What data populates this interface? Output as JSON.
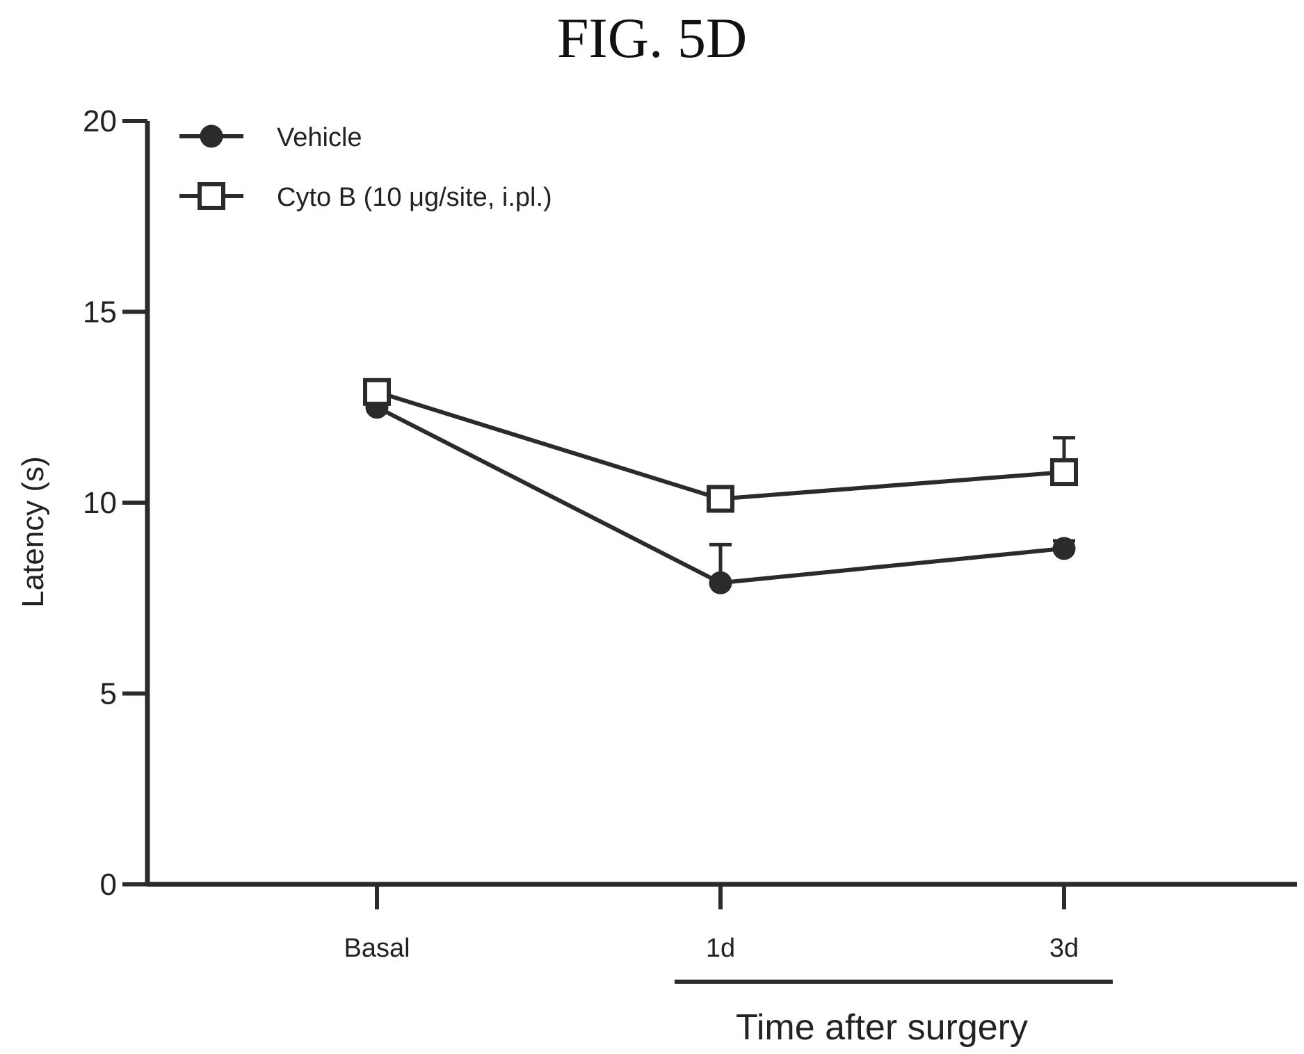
{
  "figure": {
    "title": "FIG. 5D"
  },
  "chart_data": {
    "type": "line",
    "categories": [
      "Basal",
      "1d",
      "3d"
    ],
    "ylabel": "Latency (s)",
    "xlabel": "Time after surgery",
    "ylim": [
      0,
      20
    ],
    "yticks": [
      0,
      5,
      10,
      15,
      20
    ],
    "legend_position": "top-left",
    "grid": false,
    "series": [
      {
        "name": "Vehicle",
        "marker": "filled-circle",
        "values": [
          12.5,
          7.9,
          8.8
        ],
        "error": [
          0.3,
          1.0,
          0.2
        ]
      },
      {
        "name": "Cyto B (10  μg/site, i.pl.)",
        "marker": "open-square",
        "values": [
          12.9,
          10.1,
          10.8
        ],
        "error": [
          0.3,
          0.2,
          0.9
        ]
      }
    ],
    "colors": {
      "line": "#2b2b2b",
      "text": "#222222"
    }
  }
}
